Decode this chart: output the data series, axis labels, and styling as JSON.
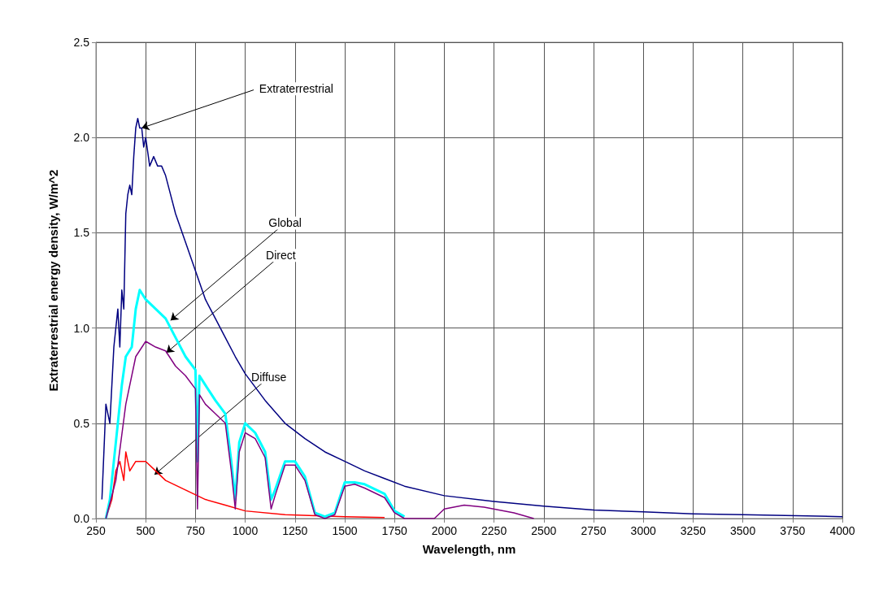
{
  "chart_data": {
    "type": "line",
    "xlabel": "Wavelength, nm",
    "ylabel": "Extraterrestrial energy density, W/m^2",
    "xlim": [
      250,
      4000
    ],
    "xticks": [
      250,
      500,
      750,
      1000,
      1250,
      1500,
      1750,
      2000,
      2250,
      2500,
      2750,
      3000,
      3250,
      3500,
      3750,
      4000
    ],
    "ylim": [
      0,
      2.5
    ],
    "yticks": [
      {
        "value": 0,
        "label": "0.0"
      },
      {
        "value": 0.5,
        "label": "0.5"
      },
      {
        "value": 1,
        "label": "1.0"
      },
      {
        "value": 1.5,
        "label": "1.5"
      },
      {
        "value": 2,
        "label": "2.0"
      },
      {
        "value": 2.5,
        "label": "2.5"
      }
    ],
    "grid": true,
    "marker": "none",
    "line_style": "solid",
    "series": [
      {
        "color": "#000080",
        "x": [
          280,
          300,
          320,
          340,
          360,
          370,
          380,
          390,
          400,
          410,
          420,
          430,
          440,
          450,
          460,
          470,
          480,
          490,
          500,
          520,
          540,
          560,
          580,
          600,
          620,
          650,
          700,
          750,
          800,
          850,
          900,
          950,
          1000,
          1100,
          1200,
          1300,
          1400,
          1500,
          1600,
          1700,
          1800,
          2000,
          2250,
          2500,
          2750,
          3000,
          3250,
          3500,
          4000
        ],
        "values": [
          0.1,
          0.6,
          0.5,
          0.9,
          1.1,
          0.9,
          1.2,
          1.1,
          1.6,
          1.7,
          1.75,
          1.7,
          1.9,
          2.05,
          2.1,
          2.05,
          2.05,
          1.95,
          2.0,
          1.85,
          1.9,
          1.85,
          1.85,
          1.8,
          1.72,
          1.6,
          1.45,
          1.3,
          1.15,
          1.05,
          0.95,
          0.85,
          0.76,
          0.62,
          0.5,
          0.42,
          0.35,
          0.3,
          0.25,
          0.21,
          0.17,
          0.12,
          0.09,
          0.065,
          0.045,
          0.035,
          0.025,
          0.02,
          0.01
        ]
      },
      {
        "color": "#00ffff",
        "x": [
          300,
          320,
          340,
          360,
          380,
          400,
          430,
          450,
          470,
          500,
          550,
          600,
          650,
          700,
          750,
          760,
          770,
          800,
          850,
          900,
          930,
          950,
          970,
          1000,
          1050,
          1100,
          1130,
          1150,
          1200,
          1250,
          1300,
          1350,
          1400,
          1450,
          1500,
          1550,
          1600,
          1700,
          1750,
          1800
        ],
        "values": [
          0,
          0.1,
          0.3,
          0.5,
          0.7,
          0.85,
          0.9,
          1.1,
          1.2,
          1.15,
          1.1,
          1.05,
          0.95,
          0.85,
          0.78,
          0.3,
          0.75,
          0.7,
          0.62,
          0.55,
          0.3,
          0.1,
          0.4,
          0.5,
          0.45,
          0.35,
          0.1,
          0.15,
          0.3,
          0.3,
          0.22,
          0.03,
          0.01,
          0.03,
          0.19,
          0.19,
          0.18,
          0.13,
          0.04,
          0.01
        ]
      },
      {
        "color": "#800080",
        "x": [
          300,
          350,
          400,
          450,
          500,
          550,
          600,
          650,
          700,
          750,
          760,
          770,
          800,
          850,
          900,
          930,
          950,
          970,
          1000,
          1050,
          1100,
          1130,
          1150,
          1200,
          1250,
          1300,
          1350,
          1400,
          1450,
          1500,
          1550,
          1600,
          1700,
          1750,
          1800,
          1950,
          2000,
          2100,
          2200,
          2350,
          2450
        ],
        "values": [
          0,
          0.2,
          0.6,
          0.85,
          0.93,
          0.9,
          0.88,
          0.8,
          0.75,
          0.68,
          0.05,
          0.65,
          0.6,
          0.55,
          0.5,
          0.25,
          0.05,
          0.35,
          0.45,
          0.42,
          0.32,
          0.05,
          0.12,
          0.28,
          0.28,
          0.2,
          0.02,
          0,
          0.02,
          0.17,
          0.18,
          0.16,
          0.11,
          0.03,
          0,
          0,
          0.05,
          0.07,
          0.06,
          0.03,
          0
        ]
      },
      {
        "color": "#ff0000",
        "x": [
          300,
          330,
          350,
          370,
          390,
          400,
          420,
          450,
          500,
          550,
          600,
          700,
          800,
          900,
          1000,
          1200,
          1500,
          1700
        ],
        "values": [
          0,
          0.1,
          0.25,
          0.3,
          0.2,
          0.35,
          0.25,
          0.3,
          0.3,
          0.25,
          0.2,
          0.15,
          0.1,
          0.07,
          0.04,
          0.02,
          0.01,
          0.005
        ]
      }
    ],
    "annotations": [
      {
        "text": "Extraterrestrial",
        "x": 480,
        "y": 2.05
      },
      {
        "text": "Global",
        "x": 625,
        "y": 1.04
      },
      {
        "text": "Direct",
        "x": 604,
        "y": 0.87
      },
      {
        "text": "Diffuse",
        "x": 544,
        "y": 0.23
      }
    ]
  }
}
